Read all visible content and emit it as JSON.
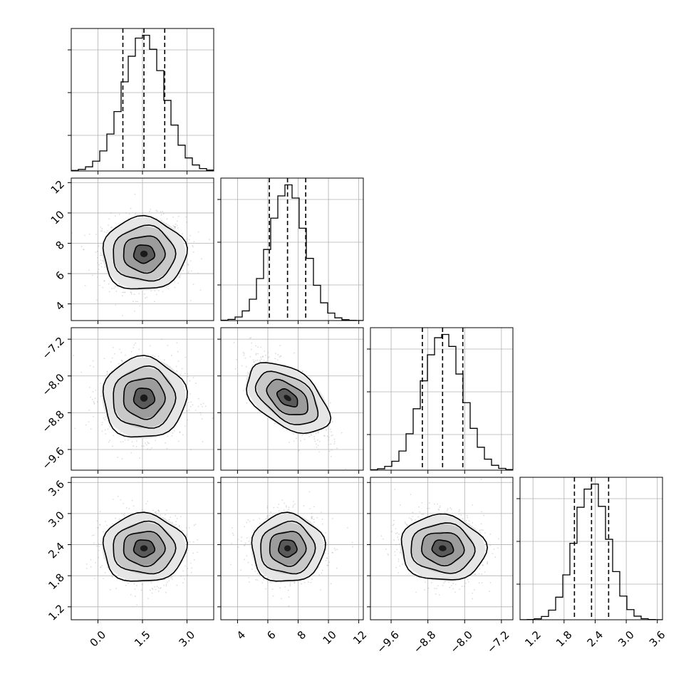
{
  "chart_data": {
    "type": "corner",
    "n_params": 4,
    "params": [
      {
        "mean": 1.55,
        "sd": 0.7,
        "range": [
          -0.9,
          3.9
        ],
        "ticks": [
          0.0,
          1.5,
          3.0
        ],
        "tick_labels": [
          "0.0",
          "1.5",
          "3.0"
        ],
        "quantiles": [
          0.84,
          1.55,
          2.25
        ]
      },
      {
        "mean": 7.3,
        "sd": 1.2,
        "range": [
          2.9,
          12.3
        ],
        "ticks": [
          4,
          6,
          8,
          10,
          12
        ],
        "tick_labels": [
          "4",
          "6",
          "8",
          "10",
          "12"
        ],
        "quantiles": [
          6.1,
          7.3,
          8.5
        ]
      },
      {
        "mean": -8.48,
        "sd": 0.44,
        "range": [
          -10.05,
          -6.95
        ],
        "ticks": [
          -9.6,
          -8.8,
          -8.0,
          -7.2
        ],
        "tick_labels": [
          "−9.6",
          "−8.8",
          "−8.0",
          "−7.2"
        ],
        "quantiles": [
          -8.92,
          -8.48,
          -8.04
        ]
      },
      {
        "mean": 2.33,
        "sd": 0.33,
        "range": [
          0.95,
          3.7
        ],
        "ticks": [
          1.2,
          1.8,
          2.4,
          3.0,
          3.6
        ],
        "tick_labels": [
          "1.2",
          "1.8",
          "2.4",
          "3.0",
          "3.6"
        ],
        "quantiles": [
          2.0,
          2.33,
          2.66
        ]
      }
    ],
    "correlations": [
      [
        1,
        0,
        0,
        0
      ],
      [
        0,
        1,
        -0.72,
        0
      ],
      [
        0,
        -0.72,
        1,
        -0.12
      ],
      [
        0,
        0,
        -0.12,
        1
      ]
    ],
    "hist_bins": 20,
    "contour_levels_sigma": [
      0.5,
      1.0,
      1.5,
      2.0
    ],
    "grid": true,
    "colors": {
      "ink": "#000000",
      "grid": "#b0b0b0",
      "points": "#9a9a9a"
    }
  }
}
